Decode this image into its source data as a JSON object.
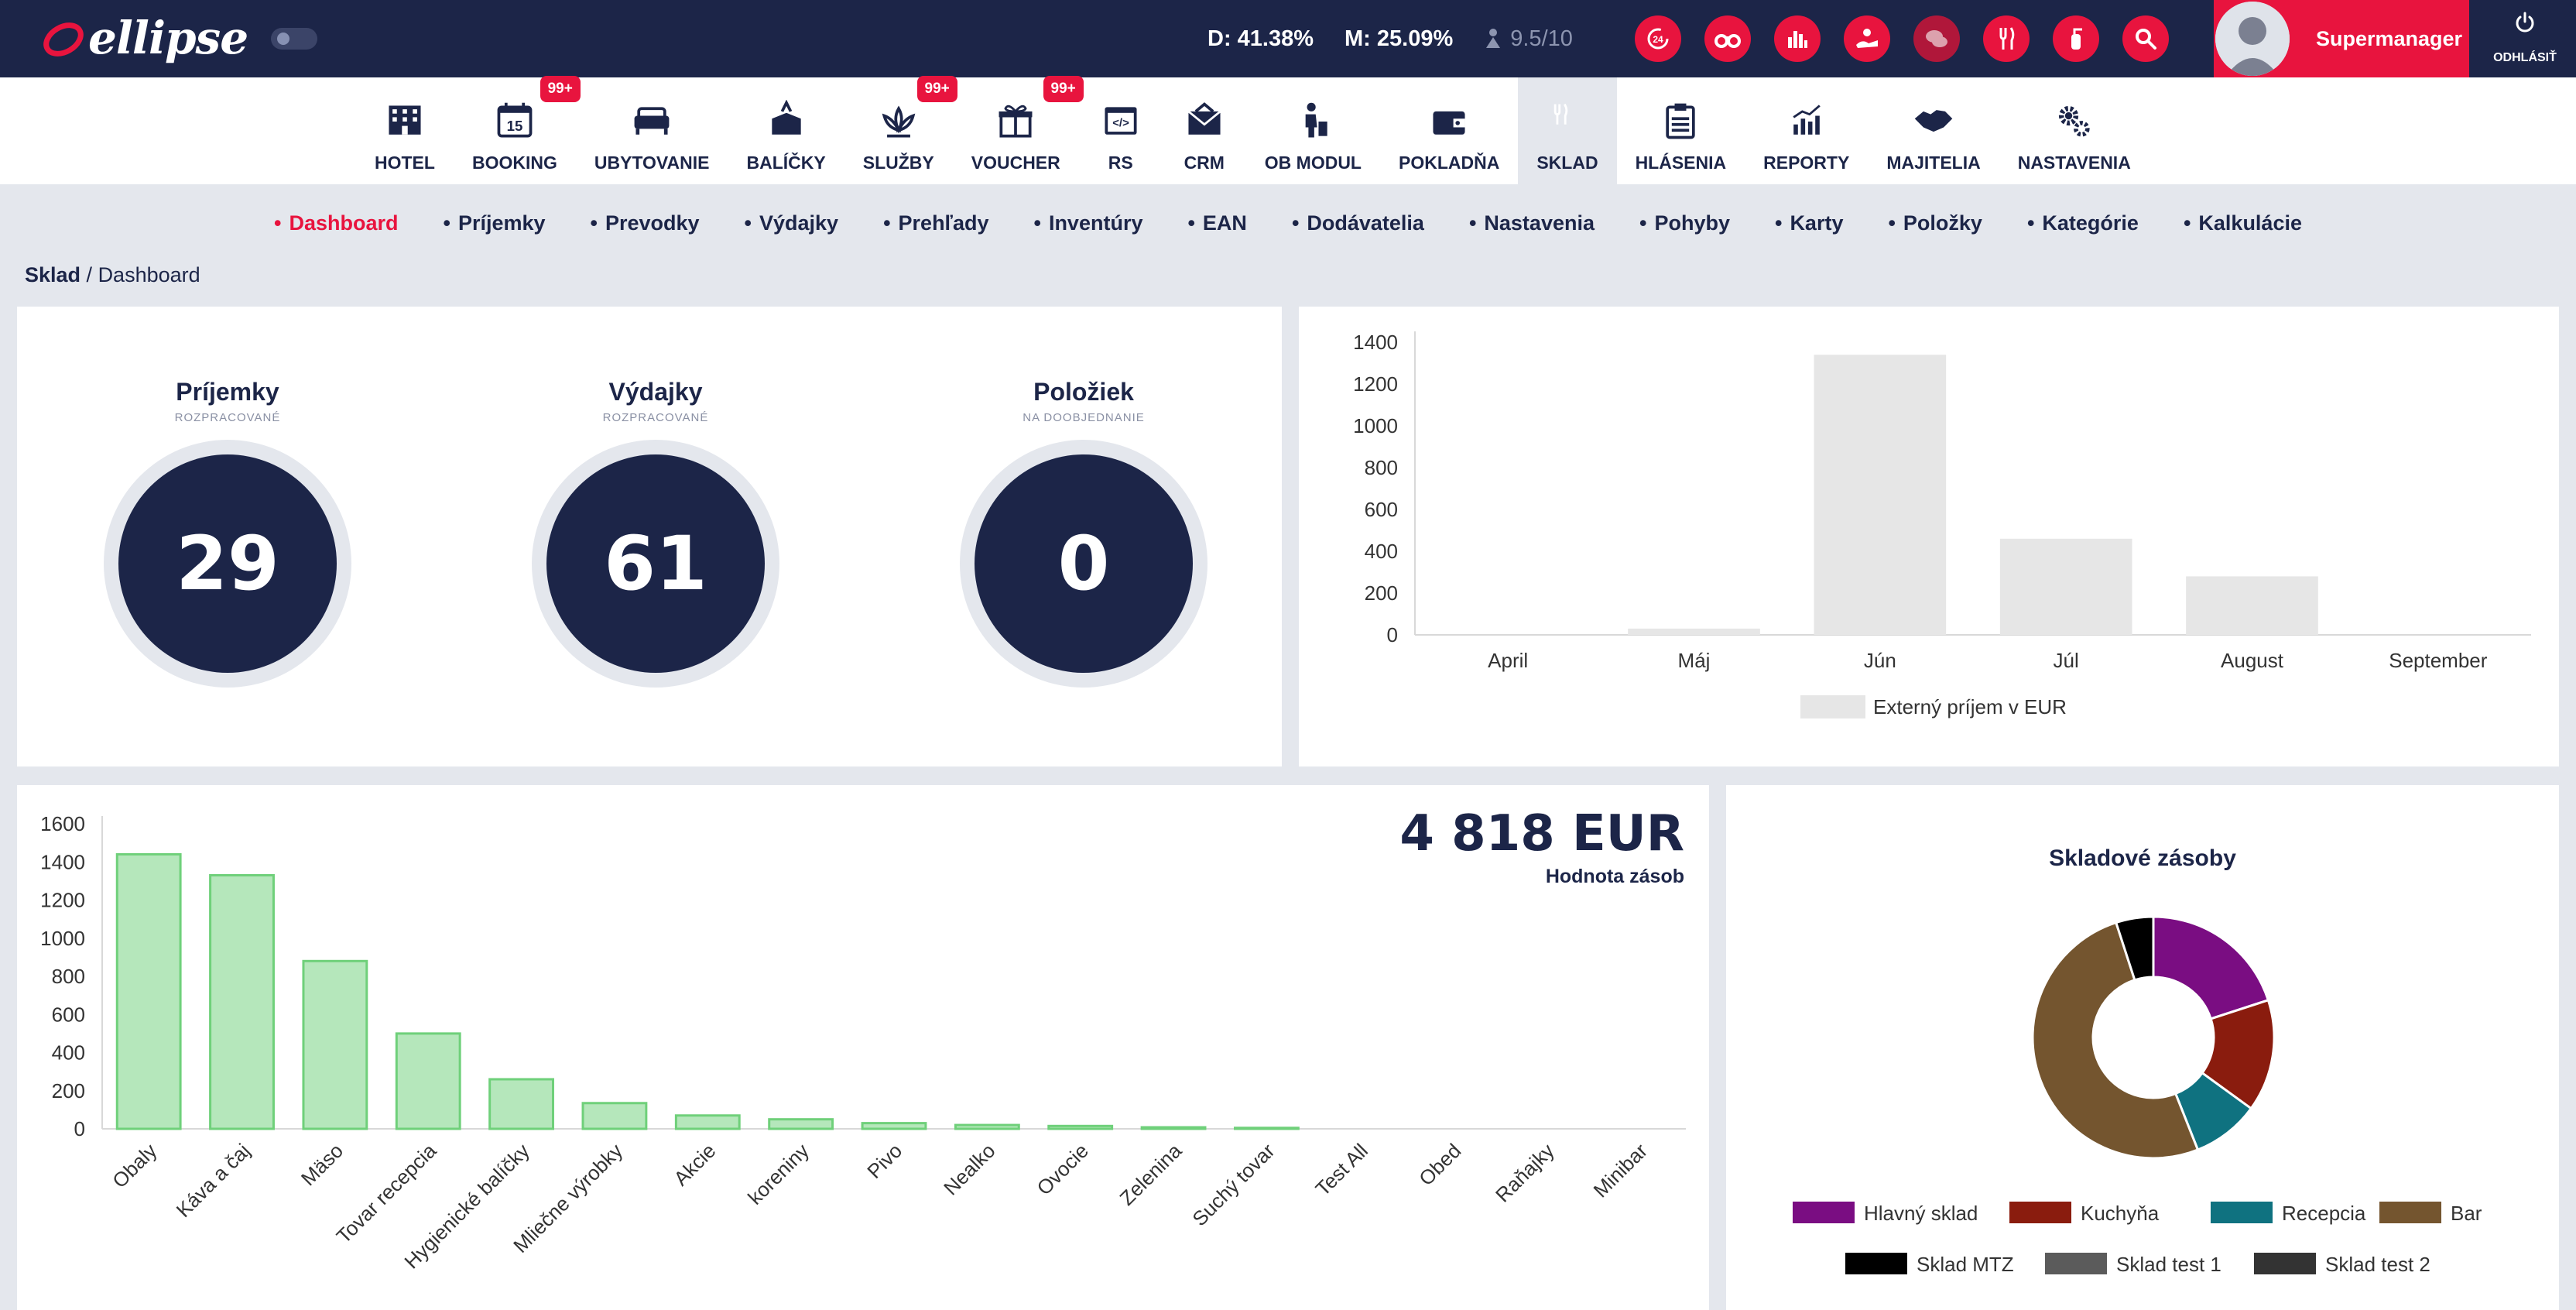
{
  "app": {
    "logo_text": "ellipse"
  },
  "topbar": {
    "stat_d": "D: 41.38%",
    "stat_m": "M: 25.09%",
    "rating": "9.5/10",
    "icons": [
      "checkin-24-icon",
      "binoculars-icon",
      "bar-chart-icon",
      "hand-service-icon",
      "chat-icon",
      "cutlery-icon",
      "fire-extinguisher-icon",
      "search-icon"
    ],
    "user_name": "Supermanager",
    "logout_label": "ODHLÁSIŤ",
    "accent": "#e8143e",
    "navy": "#1c2548"
  },
  "nav": {
    "items": [
      {
        "label": "HOTEL",
        "icon": "hotel-icon",
        "badge": ""
      },
      {
        "label": "BOOKING",
        "icon": "calendar-icon",
        "badge": "99+",
        "day": "15"
      },
      {
        "label": "UBYTOVANIE",
        "icon": "bed-icon",
        "badge": ""
      },
      {
        "label": "BALÍČKY",
        "icon": "package-icon",
        "badge": ""
      },
      {
        "label": "SLUŽBY",
        "icon": "lotus-icon",
        "badge": "99+"
      },
      {
        "label": "VOUCHER",
        "icon": "gift-icon",
        "badge": "99+"
      },
      {
        "label": "RS",
        "icon": "code-window-icon",
        "badge": ""
      },
      {
        "label": "CRM",
        "icon": "envelope-icon",
        "badge": ""
      },
      {
        "label": "OB MODUL",
        "icon": "traveler-icon",
        "badge": ""
      },
      {
        "label": "POKLADŇA",
        "icon": "wallet-icon",
        "badge": ""
      },
      {
        "label": "SKLAD",
        "icon": "cutlery-icon",
        "badge": "",
        "active": true
      },
      {
        "label": "HLÁSENIA",
        "icon": "clipboard-icon",
        "badge": ""
      },
      {
        "label": "REPORTY",
        "icon": "report-chart-icon",
        "badge": ""
      },
      {
        "label": "MAJITELIA",
        "icon": "handshake-icon",
        "badge": ""
      },
      {
        "label": "NASTAVENIA",
        "icon": "gears-icon",
        "badge": ""
      }
    ]
  },
  "subnav": {
    "items": [
      "Dashboard",
      "Príjemky",
      "Prevodky",
      "Výdajky",
      "Prehľady",
      "Inventúry",
      "EAN",
      "Dodávatelia",
      "Nastavenia",
      "Pohyby",
      "Karty",
      "Položky",
      "Kategórie",
      "Kalkulácie"
    ],
    "active": "Dashboard"
  },
  "breadcrumb": {
    "root": "Sklad",
    "separator": " / ",
    "current": "Dashboard"
  },
  "counters": [
    {
      "title": "Príjemky",
      "subtitle": "ROZPRACOVANÉ",
      "value": "29"
    },
    {
      "title": "Výdajky",
      "subtitle": "ROZPRACOVANÉ",
      "value": "61"
    },
    {
      "title": "Položiek",
      "subtitle": "NA DOOBJEDNANIE",
      "value": "0"
    }
  ],
  "stock_value": {
    "amount": "4 818 EUR",
    "caption": "Hodnota zásob"
  },
  "chart_data": [
    {
      "type": "bar",
      "categories": [
        "April",
        "Máj",
        "Jún",
        "Júl",
        "August",
        "September"
      ],
      "series": [
        {
          "name": "Externý príjem v EUR",
          "values": [
            0,
            30,
            1340,
            460,
            280,
            0
          ],
          "color": "#e6e6e6"
        }
      ],
      "ylim": [
        0,
        1400
      ],
      "yticks": [
        0,
        200,
        400,
        600,
        800,
        1000,
        1200,
        1400
      ],
      "legend": "bottom",
      "grid": false
    },
    {
      "type": "bar",
      "categories": [
        "Obaly",
        "Káva a čaj",
        "Mäso",
        "Tovar recepcia",
        "Hygienické balíčky",
        "Mliečne výrobky",
        "Akcie",
        "koreniny",
        "Pivo",
        "Nealko",
        "Ovocie",
        "Zelenina",
        "Suchý tovar",
        "Test All",
        "Obed",
        "Raňajky",
        "Minibar"
      ],
      "values": [
        1440,
        1330,
        880,
        500,
        260,
        135,
        70,
        50,
        30,
        20,
        15,
        8,
        5,
        0,
        0,
        0,
        0
      ],
      "ylim": [
        0,
        1600
      ],
      "yticks": [
        0,
        200,
        400,
        600,
        800,
        1000,
        1200,
        1400,
        1600
      ],
      "color": "#b5e7bb",
      "edge_color": "#6fd07a",
      "grid": false
    },
    {
      "type": "pie",
      "title": "Skladové zásoby",
      "categories": [
        "Hlavný sklad",
        "Kuchyňa",
        "Recepcia",
        "Bar",
        "Sklad MTZ",
        "Sklad test 1",
        "Sklad test 2"
      ],
      "values": [
        20,
        15,
        9,
        51,
        5,
        0,
        0
      ],
      "colors": [
        "#7a0d82",
        "#8a1c0e",
        "#0f7280",
        "#74552f",
        "#000000",
        "#5b5b5b",
        "#333333"
      ],
      "legend": "bottom",
      "donut": true
    }
  ]
}
